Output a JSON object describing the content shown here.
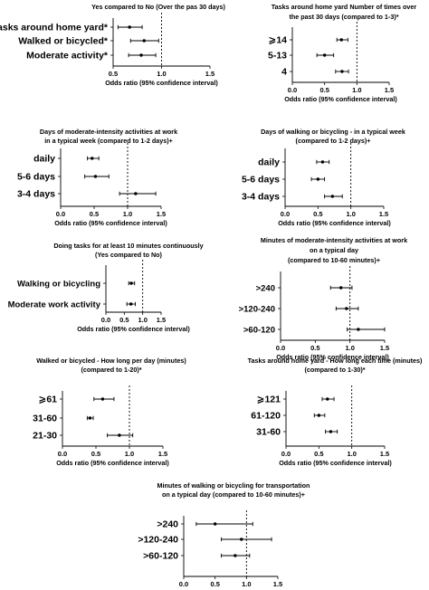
{
  "chart_data": [
    {
      "type": "forest",
      "title": [
        "Yes compared to No (Over the pas 30 days)"
      ],
      "categories": [
        "Tasks around home yard*",
        "Walked or bicycled*",
        "Moderate activity*"
      ],
      "estimate": [
        0.67,
        0.82,
        0.79
      ],
      "ci_low": [
        0.55,
        0.68,
        0.66
      ],
      "ci_high": [
        0.8,
        0.97,
        0.94
      ],
      "xlim": [
        0.5,
        1.5
      ],
      "xticks": [
        "0.5",
        "1.0",
        "1.5"
      ],
      "reference": 1.0,
      "xlabel": "Odds ratio (95% confidence interval)"
    },
    {
      "type": "forest",
      "title": [
        "Tasks around home yard Number of times over",
        "the past 30 days (compared to 1-3)*"
      ],
      "categories": [
        "⩾14",
        "5-13",
        "4"
      ],
      "estimate": [
        0.76,
        0.5,
        0.77
      ],
      "ci_low": [
        0.69,
        0.38,
        0.67
      ],
      "ci_high": [
        0.86,
        0.64,
        0.87
      ],
      "xlim": [
        0,
        1.5
      ],
      "xticks": [
        "0.0",
        "0.5",
        "1.0",
        "1.5"
      ],
      "reference": 1.0,
      "xlabel": "Odds ratio (95% confidence interval)"
    },
    {
      "type": "forest",
      "title": [
        "Days of moderate-intensity activities at work",
        "in a typical week (compared to 1-2 days)+"
      ],
      "categories": [
        "daily",
        "5-6 days",
        "3-4 days"
      ],
      "estimate": [
        0.47,
        0.52,
        1.12
      ],
      "ci_low": [
        0.4,
        0.36,
        0.88
      ],
      "ci_high": [
        0.57,
        0.72,
        1.42
      ],
      "xlim": [
        0,
        1.5
      ],
      "xticks": [
        "0.0",
        "0.5",
        "1.0",
        "1.5"
      ],
      "reference": 1.0,
      "xlabel": "Odds ratio (95% confidence interval)"
    },
    {
      "type": "forest",
      "title": [
        "Days of walking or bicycling - in a typical week",
        "(compared to 1-2 days)+"
      ],
      "categories": [
        "daily",
        "5-6 days",
        "3-4 days"
      ],
      "estimate": [
        0.57,
        0.5,
        0.72
      ],
      "ci_low": [
        0.48,
        0.4,
        0.6
      ],
      "ci_high": [
        0.67,
        0.6,
        0.87
      ],
      "xlim": [
        0,
        1.5
      ],
      "xticks": [
        "0.0",
        "0.5",
        "1.0",
        "1.5"
      ],
      "reference": 1.0,
      "xlabel": "Odds ratio (95% confidence interval)"
    },
    {
      "type": "forest",
      "title": [
        "Doing tasks for at least 10 minutes continuously",
        "(Yes compared to No)"
      ],
      "categories": [
        "Walking or bicycling",
        "Moderate work activity"
      ],
      "estimate": [
        0.69,
        0.68
      ],
      "ci_low": [
        0.62,
        0.57
      ],
      "ci_high": [
        0.78,
        0.8
      ],
      "xlim": [
        0,
        1.5
      ],
      "xticks": [
        "0.0",
        "0.5",
        "1.0",
        "1.5"
      ],
      "reference": 1.0,
      "xlabel": "Odds ratio (95% confidence interval)"
    },
    {
      "type": "forest",
      "title": [
        "Minutes of moderate-intensity activities at work",
        "on a typical day",
        "(compared to 10-60 minutes)+"
      ],
      "categories": [
        ">240",
        ">120-240",
        ">60-120"
      ],
      "estimate": [
        0.87,
        0.95,
        1.12
      ],
      "ci_low": [
        0.72,
        0.8,
        0.96
      ],
      "ci_high": [
        1.03,
        1.12,
        1.5
      ],
      "xlim": [
        0,
        1.5
      ],
      "xticks": [
        "0.0",
        "0.5",
        "1.0",
        "1.5"
      ],
      "reference": 1.0,
      "xlabel": "Odds ratio (95% confidence interval)"
    },
    {
      "type": "forest",
      "title": [
        "Walked or bicycled - How long per day (minutes)",
        "(compared to 1-20)*"
      ],
      "categories": [
        "⩾61",
        "31-60",
        "21-30"
      ],
      "estimate": [
        0.6,
        0.41,
        0.85
      ],
      "ci_low": [
        0.47,
        0.37,
        0.67
      ],
      "ci_high": [
        0.77,
        0.46,
        1.05
      ],
      "xlim": [
        0,
        1.5
      ],
      "xticks": [
        "0.0",
        "0.5",
        "1.0",
        "1.5"
      ],
      "reference": 1.0,
      "xlabel": "Odds ratio (95% confidence interval)"
    },
    {
      "type": "forest",
      "title": [
        "Tasks around home yard - How long each time (minutes)",
        "(compared to 1-30)*"
      ],
      "categories": [
        "⩾121",
        "61-120",
        "31-60"
      ],
      "estimate": [
        0.63,
        0.5,
        0.68
      ],
      "ci_low": [
        0.55,
        0.43,
        0.6
      ],
      "ci_high": [
        0.73,
        0.59,
        0.78
      ],
      "xlim": [
        0,
        1.5
      ],
      "xticks": [
        "0.0",
        "0.5",
        "1.0",
        "1.5"
      ],
      "reference": 1.0,
      "xlabel": "Odds ratio (95% confidence interval)"
    },
    {
      "type": "forest",
      "title": [
        "Minutes of walking or bicycling for transportation",
        "on a typical day (compared to 10-60 minutes)+"
      ],
      "categories": [
        ">240",
        ">120-240",
        ">60-120"
      ],
      "estimate": [
        0.5,
        0.92,
        0.82
      ],
      "ci_low": [
        0.2,
        0.6,
        0.6
      ],
      "ci_high": [
        1.1,
        1.4,
        1.05
      ],
      "xlim": [
        0,
        1.5
      ],
      "xticks": [
        "0.0",
        "0.5",
        "1.0",
        "1.5"
      ],
      "reference": 1.0,
      "xlabel": "Odds ratio (95% confidence interval)"
    }
  ]
}
